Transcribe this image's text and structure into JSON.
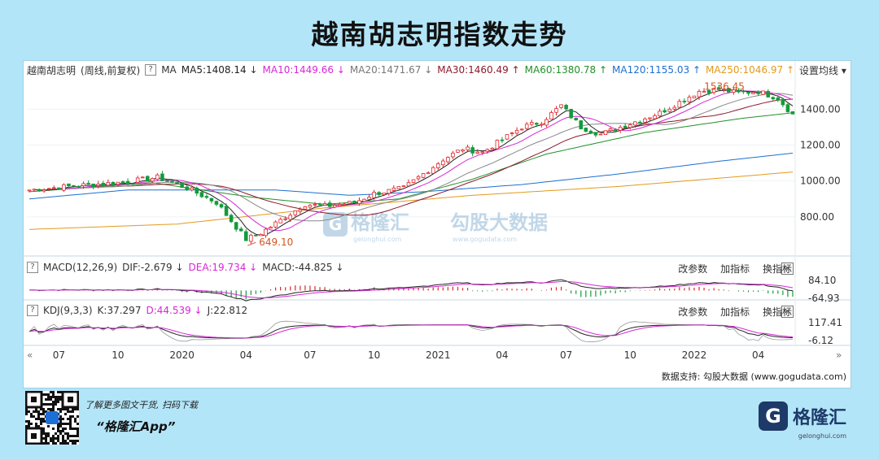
{
  "title": "越南胡志明指数走势",
  "main_header": {
    "name": "越南胡志明",
    "period": "(周线,前复权)",
    "ma_label": "MA",
    "ma5": "MA5:1408.14",
    "ma10": "MA10:1449.66",
    "ma20": "MA20:1471.67",
    "ma30": "MA30:1460.49",
    "ma60": "MA60:1380.78",
    "ma120": "MA120:1155.03",
    "ma250": "MA250:1046.97",
    "setting": "设置均线"
  },
  "macd_header": {
    "label": "MACD(12,26,9)",
    "dif": "DIF:-2.679",
    "dea": "DEA:19.734",
    "macd": "MACD:-44.825"
  },
  "kdj_header": {
    "label": "KDJ(9,3,3)",
    "k": "K:37.297",
    "d": "D:44.539",
    "j": "J:22.812"
  },
  "tools": {
    "change": "改参数",
    "add": "加指标",
    "swap": "换指标",
    "close": "×"
  },
  "watermark": {
    "brand": "格隆汇",
    "brand_sub": "gelonghui.com",
    "gogu": "勾股大数据",
    "gogu_sub": "www.gogudata.com"
  },
  "source": "数据支持: 勾股大数据  (www.gogudata.com)",
  "promo": "了解更多图文干货, 扫码下载",
  "app": "“格隆汇App”",
  "logo": {
    "g": "G",
    "text": "格隆汇",
    "sub": "gelonghui.com"
  },
  "colors": {
    "up": "#e0242a",
    "down": "#159a3c",
    "ma5": "#222222",
    "ma10": "#d628d6",
    "ma20": "#888888",
    "ma30": "#8b1a2a",
    "ma60": "#22902a",
    "ma120": "#1e6fd0",
    "ma250": "#e39a1c"
  },
  "chart_data": {
    "type": "candlestick",
    "price_axis": {
      "ticks": [
        800,
        1000,
        1200,
        1400
      ],
      "labels": [
        "800.00",
        "1000.00",
        "1200.00",
        "1400.00"
      ],
      "range": [
        600,
        1560
      ]
    },
    "x_ticks": [
      "07",
      "10",
      "2020",
      "04",
      "07",
      "10",
      "2021",
      "04",
      "07",
      "10",
      "2022",
      "04"
    ],
    "annotations": {
      "low": "649.10",
      "high": "1536.45"
    },
    "close_anchors": [
      [
        0,
        950
      ],
      [
        10,
        975
      ],
      [
        20,
        995
      ],
      [
        26,
        1020
      ],
      [
        32,
        960
      ],
      [
        38,
        880
      ],
      [
        44,
        675
      ],
      [
        47,
        710
      ],
      [
        52,
        800
      ],
      [
        56,
        870
      ],
      [
        60,
        860
      ],
      [
        66,
        880
      ],
      [
        70,
        930
      ],
      [
        76,
        960
      ],
      [
        80,
        1040
      ],
      [
        84,
        1120
      ],
      [
        88,
        1180
      ],
      [
        92,
        1160
      ],
      [
        96,
        1230
      ],
      [
        100,
        1300
      ],
      [
        104,
        1330
      ],
      [
        108,
        1420
      ],
      [
        112,
        1300
      ],
      [
        116,
        1260
      ],
      [
        120,
        1300
      ],
      [
        124,
        1340
      ],
      [
        128,
        1380
      ],
      [
        132,
        1440
      ],
      [
        136,
        1500
      ],
      [
        140,
        1510
      ],
      [
        144,
        1490
      ],
      [
        148,
        1500
      ],
      [
        152,
        1460
      ],
      [
        155,
        1370
      ]
    ],
    "ma_anchors": {
      "ma250": [
        [
          0,
          730
        ],
        [
          30,
          760
        ],
        [
          60,
          850
        ],
        [
          90,
          920
        ],
        [
          120,
          970
        ],
        [
          155,
          1050
        ]
      ],
      "ma120": [
        [
          0,
          900
        ],
        [
          20,
          950
        ],
        [
          50,
          950
        ],
        [
          65,
          920
        ],
        [
          80,
          940
        ],
        [
          100,
          980
        ],
        [
          120,
          1040
        ],
        [
          140,
          1110
        ],
        [
          155,
          1155
        ]
      ],
      "ma60": [
        [
          0,
          940
        ],
        [
          25,
          990
        ],
        [
          45,
          910
        ],
        [
          60,
          870
        ],
        [
          75,
          900
        ],
        [
          90,
          1010
        ],
        [
          105,
          1150
        ],
        [
          125,
          1270
        ],
        [
          145,
          1350
        ],
        [
          155,
          1380
        ]
      ]
    },
    "macd": {
      "axis_labels": [
        "84.10",
        "-64.93"
      ],
      "range": [
        -64.93,
        84.1
      ],
      "dif": -2.679,
      "dea": 19.734,
      "macd": -44.825
    },
    "kdj": {
      "axis_labels": [
        "117.41",
        "-6.12"
      ],
      "range": [
        -6.12,
        117.41
      ],
      "k": 37.297,
      "d": 44.539,
      "j": 22.812
    }
  }
}
